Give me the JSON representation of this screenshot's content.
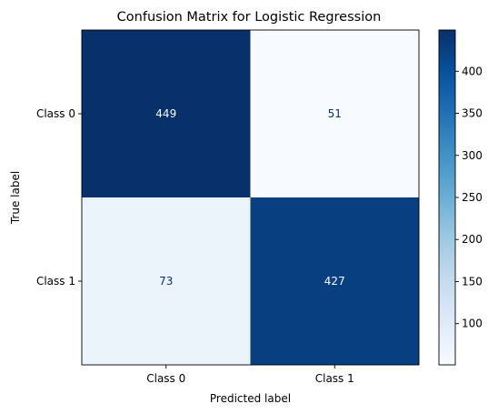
{
  "chart_data": {
    "type": "heatmap",
    "title": "Confusion Matrix for Logistic Regression",
    "xlabel": "Predicted label",
    "ylabel": "True label",
    "x_categories": [
      "Class 0",
      "Class 1"
    ],
    "y_categories": [
      "Class 0",
      "Class 1"
    ],
    "values": [
      [
        449,
        51
      ],
      [
        73,
        427
      ]
    ],
    "colormap": "Blues",
    "colorbar": {
      "ticks": [
        100,
        150,
        200,
        250,
        300,
        350,
        400
      ],
      "range": [
        51,
        449
      ]
    }
  }
}
